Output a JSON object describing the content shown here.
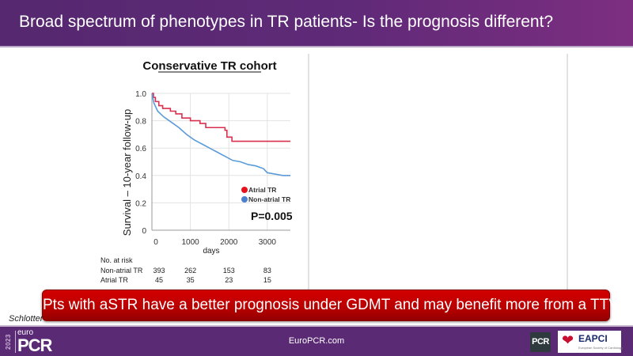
{
  "header": {
    "title": "Broad spectrum of phenotypes in TR patients- Is the  prognosis different?"
  },
  "callout": {
    "text": "Pts with aSTR have a better prognosis under GDMT and may benefit more from a TTVI"
  },
  "citation": {
    "text": "Schlotter"
  },
  "footer": {
    "logo_year": "2023",
    "logo_euro": "euro",
    "logo_pcr": "PCR",
    "url": "EuroPCR.com",
    "pcr_badge": "PCR",
    "eapci_label": "EAPCI",
    "eapci_sub": "European Society of Cardiology"
  },
  "colors": {
    "atrial": "#d9304f",
    "non_atrial": "#5b9bd8",
    "callout": "#c00000",
    "brand_purple": "#5b2a75"
  },
  "chart_data": {
    "type": "line",
    "title": "Conservative TR cohort",
    "xlabel": "days",
    "ylabel": "Survival – 10-year follow-up",
    "xlim": [
      0,
      3600
    ],
    "ylim": [
      0,
      1.0
    ],
    "x_ticks": [
      "0",
      "1000",
      "2000",
      "3000"
    ],
    "x_tick_values": [
      0,
      1000,
      2000,
      3000
    ],
    "y_ticks": [
      "0",
      "0.2",
      "0.4",
      "0.6",
      "0.8",
      "1.0"
    ],
    "y_tick_values": [
      0,
      0.2,
      0.4,
      0.6,
      0.8,
      1.0
    ],
    "grid": true,
    "legend_position": "bottom-right",
    "annotation": "P=0.005",
    "series": [
      {
        "name": "Atrial TR",
        "step": true,
        "x": [
          0,
          40,
          90,
          180,
          280,
          480,
          620,
          780,
          1000,
          1250,
          1400,
          1900,
          1950,
          2080,
          3600
        ],
        "y": [
          1.0,
          0.97,
          0.94,
          0.91,
          0.89,
          0.87,
          0.85,
          0.82,
          0.8,
          0.78,
          0.75,
          0.73,
          0.68,
          0.65,
          0.65
        ]
      },
      {
        "name": "Non-atrial TR",
        "step": false,
        "x": [
          0,
          50,
          150,
          300,
          500,
          700,
          900,
          1100,
          1300,
          1500,
          1700,
          1900,
          2100,
          2300,
          2500,
          2700,
          2900,
          3000,
          3200,
          3400,
          3600
        ],
        "y": [
          1.0,
          0.93,
          0.87,
          0.83,
          0.79,
          0.75,
          0.7,
          0.66,
          0.63,
          0.6,
          0.57,
          0.54,
          0.51,
          0.5,
          0.48,
          0.47,
          0.45,
          0.42,
          0.41,
          0.4,
          0.4
        ]
      }
    ],
    "risk_table": {
      "label": "No. at risk",
      "rows": [
        {
          "name": "Non-atrial TR",
          "values": [
            "393",
            "262",
            "153",
            "83"
          ]
        },
        {
          "name": "Atrial TR",
          "values": [
            "45",
            "35",
            "23",
            "15"
          ]
        }
      ]
    }
  }
}
